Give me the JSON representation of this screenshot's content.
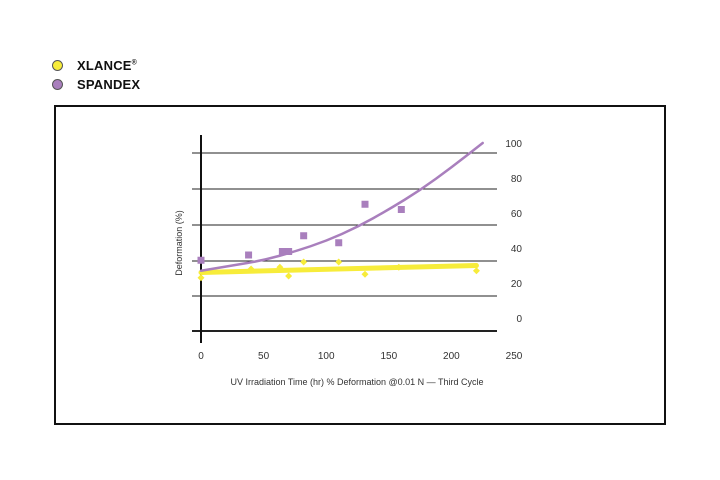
{
  "legend": {
    "items": [
      {
        "label": "XLANCE",
        "mark": "®",
        "color": "#f7ec3a"
      },
      {
        "label": "SPANDEX",
        "color": "#a97fbd"
      }
    ]
  },
  "chart_data": {
    "type": "scatter",
    "xlabel": "UV Irradiation Time (hr) % Deformation @0.01 N — Third Cycle",
    "ylabel": "Deformation (%)",
    "xlim": [
      0,
      250
    ],
    "ylim": [
      0,
      100
    ],
    "x_ticks": [
      "0",
      "50",
      "100",
      "150",
      "200",
      "250"
    ],
    "y_ticks": [
      "0",
      "20",
      "40",
      "60",
      "80",
      "100"
    ],
    "grid": true,
    "series": [
      {
        "name": "XLANCE",
        "color": "#f7ec3a",
        "marker": "diamond",
        "points": [
          [
            0,
            23
          ],
          [
            40,
            28
          ],
          [
            63,
            29
          ],
          [
            70,
            24
          ],
          [
            82,
            32
          ],
          [
            110,
            32
          ],
          [
            131,
            25
          ],
          [
            158,
            29
          ],
          [
            220,
            27
          ]
        ],
        "trend": [
          [
            0,
            26
          ],
          [
            220,
            30
          ]
        ]
      },
      {
        "name": "SPANDEX",
        "color": "#a97fbd",
        "marker": "square",
        "points": [
          [
            0,
            33
          ],
          [
            38,
            36
          ],
          [
            65,
            38
          ],
          [
            70,
            38
          ],
          [
            82,
            47
          ],
          [
            110,
            43
          ],
          [
            131,
            65
          ],
          [
            160,
            62
          ]
        ],
        "trend": [
          [
            0,
            27
          ],
          [
            25,
            30
          ],
          [
            50,
            33
          ],
          [
            75,
            38
          ],
          [
            100,
            44
          ],
          [
            125,
            52
          ],
          [
            150,
            62
          ],
          [
            175,
            73
          ],
          [
            200,
            86
          ],
          [
            225,
            100
          ]
        ]
      }
    ]
  }
}
